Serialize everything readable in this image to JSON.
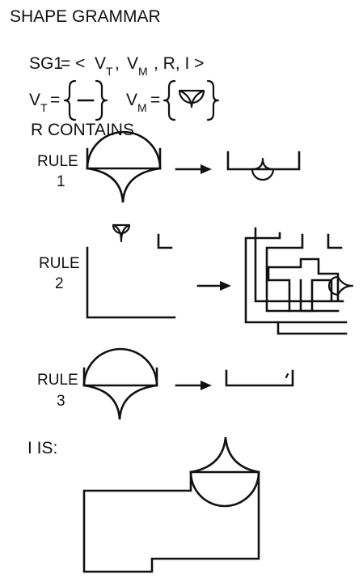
{
  "title": "SHAPE GRAMMAR",
  "definition": {
    "name": "SG1",
    "equals_open": "= <",
    "vt": "V",
    "vt_sub": "T",
    "comma1": ",",
    "vm": "V",
    "vm_sub": "M",
    "rest": ", R, I >"
  },
  "vt_def": {
    "label": "V",
    "sub": "T",
    "eq": "="
  },
  "vm_def": {
    "label": "V",
    "sub": "M",
    "eq": "="
  },
  "r_heading": "R CONTAINS",
  "rules": [
    {
      "label": "RULE",
      "number": "1"
    },
    {
      "label": "RULE",
      "number": "2"
    },
    {
      "label": "RULE",
      "number": "3"
    }
  ],
  "initial_heading": "I  IS:"
}
